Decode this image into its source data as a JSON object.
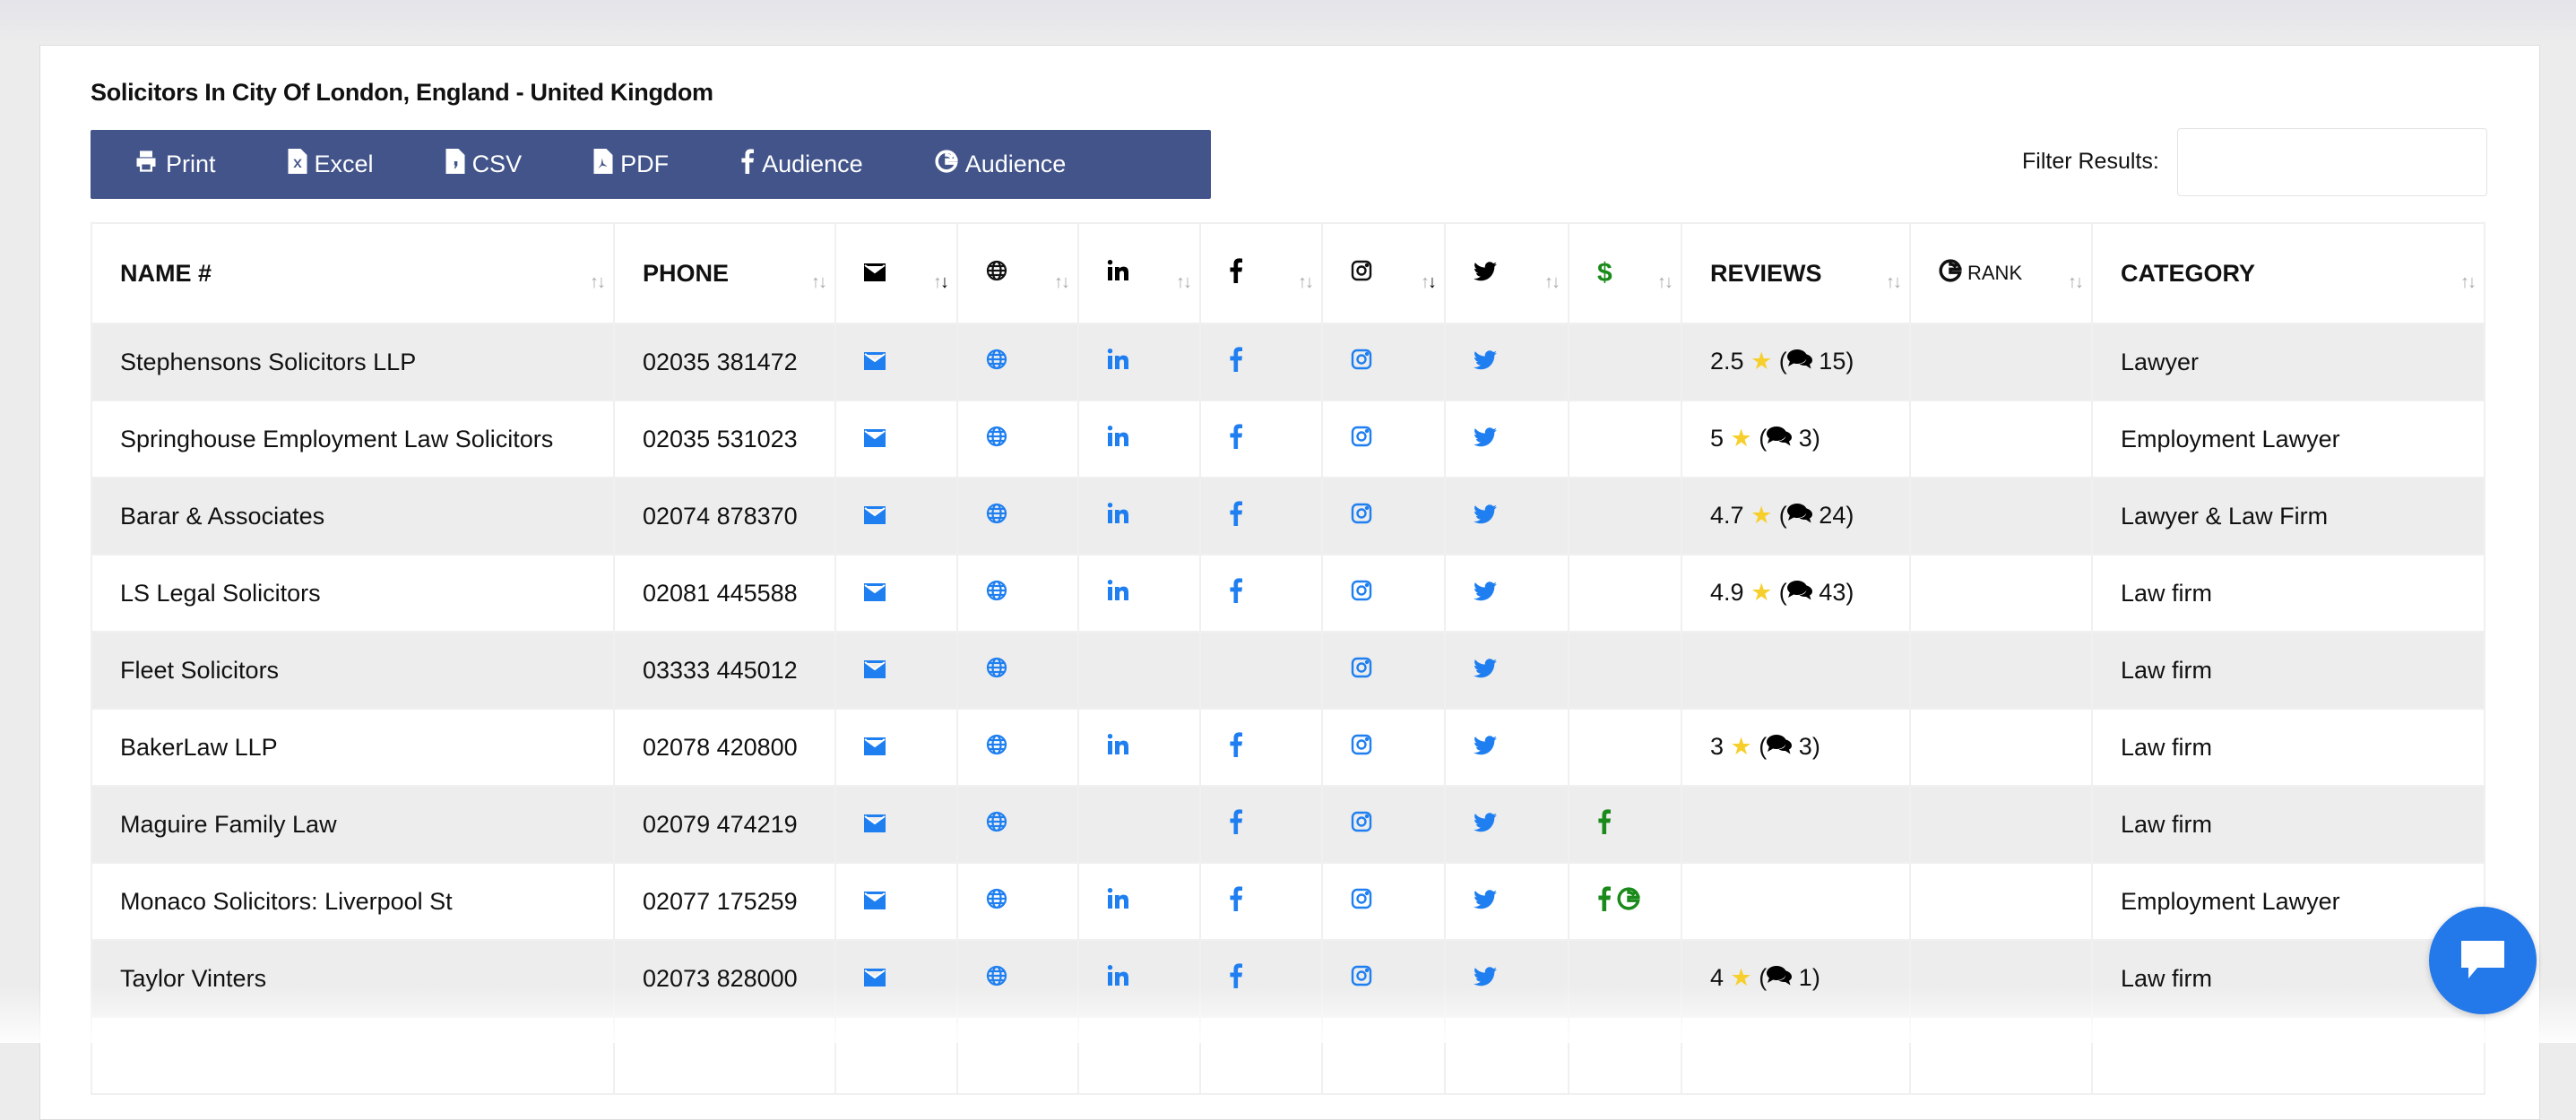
{
  "title": "Solicitors In City Of London, England - United Kingdom",
  "toolbar": [
    {
      "label": "Print",
      "icon": "print-icon"
    },
    {
      "label": "Excel",
      "icon": "excel-file-icon"
    },
    {
      "label": "CSV",
      "icon": "csv-file-icon"
    },
    {
      "label": "PDF",
      "icon": "pdf-file-icon"
    },
    {
      "label": "Audience",
      "icon": "facebook-icon"
    },
    {
      "label": "Audience",
      "icon": "google-icon"
    }
  ],
  "filter": {
    "label": "Filter Results:",
    "value": "",
    "placeholder": ""
  },
  "columns": [
    {
      "label": "NAME #",
      "key": "name"
    },
    {
      "label": "PHONE",
      "key": "phone"
    },
    {
      "label": "",
      "icon": "email-icon",
      "sorted": "desc"
    },
    {
      "label": "",
      "icon": "globe-icon"
    },
    {
      "label": "",
      "icon": "linkedin-icon"
    },
    {
      "label": "",
      "icon": "facebook-icon"
    },
    {
      "label": "",
      "icon": "instagram-icon",
      "sorted": "desc"
    },
    {
      "label": "",
      "icon": "twitter-icon"
    },
    {
      "label": "",
      "icon": "dollar-icon"
    },
    {
      "label": "REVIEWS"
    },
    {
      "label": "RANK",
      "icon": "google-icon"
    },
    {
      "label": "CATEGORY"
    }
  ],
  "colors": {
    "toolbar": "#42548a",
    "icon": "#1f7ff0",
    "ads": "#1a8a1a",
    "star": "#f7cf2c",
    "chat": "#2378ea"
  },
  "rows": [
    {
      "name": "Stephensons Solicitors LLP",
      "phone": "02035 381472",
      "email": true,
      "web": true,
      "linkedin": true,
      "facebook": true,
      "instagram": true,
      "twitter": true,
      "ads": [],
      "rating": "2.5",
      "reviews": "15",
      "rank": "",
      "category": "Lawyer"
    },
    {
      "name": "Springhouse Employment Law Solicitors",
      "phone": "02035 531023",
      "email": true,
      "web": true,
      "linkedin": true,
      "facebook": true,
      "instagram": true,
      "twitter": true,
      "ads": [],
      "rating": "5",
      "reviews": "3",
      "rank": "",
      "category": "Employment Lawyer"
    },
    {
      "name": "Barar & Associates",
      "phone": "02074 878370",
      "email": true,
      "web": true,
      "linkedin": true,
      "facebook": true,
      "instagram": true,
      "twitter": true,
      "ads": [],
      "rating": "4.7",
      "reviews": "24",
      "rank": "",
      "category": "Lawyer & Law Firm"
    },
    {
      "name": "LS Legal Solicitors",
      "phone": "02081 445588",
      "email": true,
      "web": true,
      "linkedin": true,
      "facebook": true,
      "instagram": true,
      "twitter": true,
      "ads": [],
      "rating": "4.9",
      "reviews": "43",
      "rank": "",
      "category": "Law firm"
    },
    {
      "name": "Fleet Solicitors",
      "phone": "03333 445012",
      "email": true,
      "web": true,
      "linkedin": false,
      "facebook": false,
      "instagram": true,
      "twitter": true,
      "ads": [],
      "rating": "",
      "reviews": "",
      "rank": "",
      "category": "Law firm"
    },
    {
      "name": "BakerLaw LLP",
      "phone": "02078 420800",
      "email": true,
      "web": true,
      "linkedin": true,
      "facebook": true,
      "instagram": true,
      "twitter": true,
      "ads": [],
      "rating": "3",
      "reviews": "3",
      "rank": "",
      "category": "Law firm"
    },
    {
      "name": "Maguire Family Law",
      "phone": "02079 474219",
      "email": true,
      "web": true,
      "linkedin": false,
      "facebook": true,
      "instagram": true,
      "twitter": true,
      "ads": [
        "facebook"
      ],
      "rating": "",
      "reviews": "",
      "rank": "",
      "category": "Law firm"
    },
    {
      "name": "Monaco Solicitors: Liverpool St",
      "phone": "02077 175259",
      "email": true,
      "web": true,
      "linkedin": true,
      "facebook": true,
      "instagram": true,
      "twitter": true,
      "ads": [
        "facebook",
        "google"
      ],
      "rating": "",
      "reviews": "",
      "rank": "",
      "category": "Employment Lawyer"
    },
    {
      "name": "Taylor Vinters",
      "phone": "02073 828000",
      "email": true,
      "web": true,
      "linkedin": true,
      "facebook": true,
      "instagram": true,
      "twitter": true,
      "ads": [],
      "rating": "4",
      "reviews": "1",
      "rank": "",
      "category": "Law firm"
    }
  ]
}
